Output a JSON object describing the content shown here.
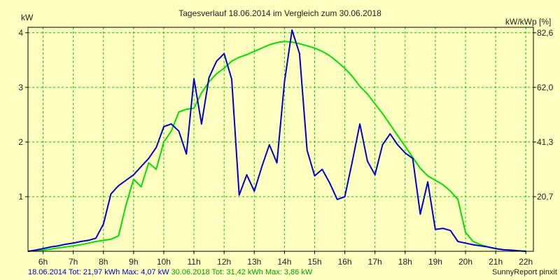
{
  "chart_data": {
    "type": "line",
    "title": "Tagesverlauf 18.06.2014 im Vergleich zum 30.06.2018",
    "ylabel_left": "kW",
    "ylabel_right": "kW/kWp [%]",
    "xlim": [
      5.5,
      22.25
    ],
    "ylim": [
      0,
      4.1
    ],
    "x_ticks": [
      6,
      7,
      8,
      9,
      10,
      11,
      12,
      13,
      14,
      15,
      16,
      17,
      18,
      19,
      20,
      21,
      22
    ],
    "x_tick_labels": [
      "6h",
      "7h",
      "8h",
      "9h",
      "10h",
      "11h",
      "12h",
      "13h",
      "14h",
      "15h",
      "16h",
      "17h",
      "18h",
      "19h",
      "20h",
      "21h",
      "22h"
    ],
    "y_ticks_left": [
      1,
      2,
      3,
      4
    ],
    "y_tick_labels_left": [
      "1",
      "2",
      "3",
      "4"
    ],
    "y_ticks_right": [
      1,
      2,
      3,
      4
    ],
    "y_tick_labels_right": [
      "20,7",
      "41,3",
      "62,0",
      "82,6"
    ],
    "grid": true,
    "series": [
      {
        "name": "18.06.2014",
        "color": "#0000c8",
        "x": [
          5.5,
          5.75,
          6.0,
          6.25,
          6.5,
          6.75,
          7.0,
          7.25,
          7.5,
          7.75,
          8.0,
          8.25,
          8.5,
          8.75,
          9.0,
          9.25,
          9.5,
          9.75,
          10.0,
          10.25,
          10.5,
          10.75,
          11.0,
          11.25,
          11.5,
          11.75,
          12.0,
          12.25,
          12.5,
          12.75,
          13.0,
          13.25,
          13.5,
          13.75,
          14.0,
          14.25,
          14.5,
          14.75,
          15.0,
          15.25,
          15.5,
          15.75,
          16.0,
          16.25,
          16.5,
          16.75,
          17.0,
          17.25,
          17.5,
          17.75,
          18.0,
          18.25,
          18.5,
          18.75,
          19.0,
          19.25,
          19.5,
          19.75,
          20.0,
          20.25,
          20.5,
          20.75,
          21.0,
          21.25,
          21.5,
          21.75,
          22.0
        ],
        "y": [
          0.0,
          0.02,
          0.05,
          0.08,
          0.1,
          0.13,
          0.15,
          0.18,
          0.2,
          0.24,
          0.5,
          1.05,
          1.2,
          1.3,
          1.4,
          1.55,
          1.7,
          1.9,
          2.28,
          2.33,
          2.2,
          1.78,
          3.16,
          2.33,
          3.18,
          3.48,
          3.62,
          3.15,
          1.03,
          1.4,
          1.1,
          1.55,
          1.95,
          1.62,
          3.1,
          4.05,
          3.62,
          1.85,
          1.38,
          1.5,
          1.25,
          0.95,
          1.0,
          1.65,
          2.33,
          1.65,
          1.4,
          1.95,
          2.15,
          1.95,
          1.8,
          1.7,
          0.68,
          1.27,
          0.4,
          0.42,
          0.38,
          0.18,
          0.15,
          0.12,
          0.1,
          0.08,
          0.05,
          0.03,
          0.02,
          0.01,
          0.0
        ]
      },
      {
        "name": "30.06.2018",
        "color": "#00e000",
        "x": [
          5.5,
          5.75,
          6.0,
          6.25,
          6.5,
          6.75,
          7.0,
          7.25,
          7.5,
          7.75,
          8.0,
          8.25,
          8.5,
          8.75,
          9.0,
          9.25,
          9.5,
          9.75,
          10.0,
          10.25,
          10.5,
          10.75,
          11.0,
          11.25,
          11.5,
          11.75,
          12.0,
          12.25,
          12.5,
          12.75,
          13.0,
          13.25,
          13.5,
          13.75,
          14.0,
          14.25,
          14.5,
          14.75,
          15.0,
          15.25,
          15.5,
          15.75,
          16.0,
          16.25,
          16.5,
          16.75,
          17.0,
          17.25,
          17.5,
          17.75,
          18.0,
          18.25,
          18.5,
          18.75,
          19.0,
          19.25,
          19.5,
          19.75,
          20.0,
          20.25,
          20.5,
          20.75,
          21.0,
          21.25,
          21.5,
          21.75,
          22.0
        ],
        "y": [
          0.0,
          0.01,
          0.02,
          0.04,
          0.06,
          0.08,
          0.1,
          0.12,
          0.15,
          0.18,
          0.2,
          0.22,
          0.28,
          0.85,
          1.32,
          1.18,
          1.62,
          1.5,
          2.0,
          2.2,
          2.55,
          2.6,
          2.62,
          2.9,
          3.1,
          3.25,
          3.35,
          3.48,
          3.55,
          3.6,
          3.66,
          3.72,
          3.78,
          3.82,
          3.84,
          3.83,
          3.8,
          3.76,
          3.72,
          3.66,
          3.58,
          3.47,
          3.35,
          3.2,
          3.02,
          2.88,
          2.7,
          2.52,
          2.32,
          2.12,
          1.92,
          1.72,
          1.52,
          1.38,
          1.3,
          1.22,
          1.1,
          0.95,
          0.35,
          0.18,
          0.12,
          0.08,
          0.05,
          0.03,
          0.02,
          0.01,
          0.0
        ]
      }
    ],
    "footer": {
      "blue_text": "18.06.2014 Tot: 21,97 kWh Max: 4,07 kW",
      "green_text": "30.06.2018 Tot: 31,42 kWh Max: 3,86 kW",
      "credit": "SunnyReport pinxit"
    }
  }
}
